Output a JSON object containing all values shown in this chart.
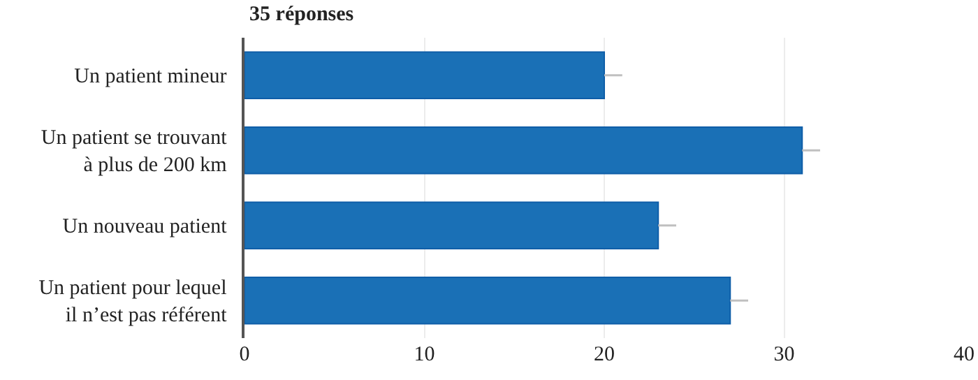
{
  "chart_data": {
    "type": "bar",
    "orientation": "horizontal",
    "title": "35 réponses",
    "categories": [
      "Un patient mineur",
      "Un patient se trouvant\nà plus de 200 km",
      "Un nouveau patient",
      "Un patient pour lequel\nil n’est pas référent"
    ],
    "values": [
      20,
      31,
      23,
      27
    ],
    "errors": [
      [
        20,
        21
      ],
      [
        31,
        32
      ],
      [
        23,
        24
      ],
      [
        27,
        28
      ]
    ],
    "color": "#1a70b6",
    "xlim": [
      0,
      40
    ],
    "xticks": [
      0,
      10,
      20,
      30,
      40
    ],
    "grid": "x"
  }
}
